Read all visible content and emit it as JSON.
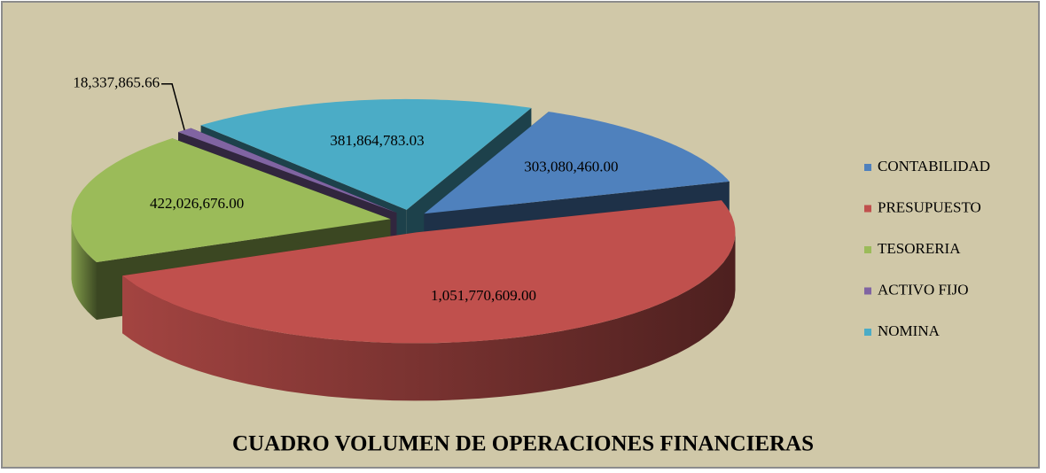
{
  "chart_data": {
    "type": "pie3d",
    "title": "CUADRO VOLUMEN DE OPERACIONES FINANCIERAS",
    "categories": [
      "CONTABILIDAD",
      "PRESUPUESTO",
      "TESORERIA",
      "ACTIVO FIJO",
      "NOMINA"
    ],
    "values": [
      303080460,
      1051770609,
      422026676,
      18337865.66,
      381864783.03
    ],
    "value_labels": [
      "303,080,460.00",
      "1,051,770,609.00",
      "422,026,676.00",
      "18,337,865.66",
      "381,864,783.03"
    ],
    "colors": [
      "#4f81bd",
      "#c0504d",
      "#9bbb59",
      "#8064a2",
      "#4bacc6"
    ],
    "legend": "right"
  }
}
